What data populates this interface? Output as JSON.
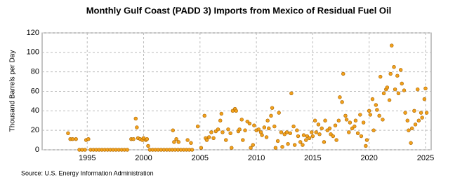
{
  "chart_data": {
    "type": "scatter",
    "title": "Monthly Gulf Coast (PADD 3) Imports from Mexico of Residual Fuel Oil",
    "y_label": "Thousand Barrels per Day",
    "source": "Source: U.S. Energy Information Administration",
    "color": "#f2a11c",
    "edge_color": "#a86400",
    "grid": true,
    "xlim": [
      1991,
      2025.5
    ],
    "ylim": [
      0,
      120
    ],
    "xticks": [
      1995,
      2000,
      2005,
      2010,
      2015,
      2020,
      2025
    ],
    "yticks": [
      0,
      20,
      40,
      60,
      80,
      100,
      120
    ],
    "x": [
      1993.3,
      1993.5,
      1993.7,
      1994.0,
      1994.9,
      1995.1,
      1994.3,
      1994.55,
      1994.8,
      1995.3,
      1995.55,
      1995.8,
      1996.05,
      1996.3,
      1996.55,
      1996.8,
      1997.05,
      1997.3,
      1997.55,
      1997.8,
      1998.05,
      1998.3,
      1998.55,
      1998.9,
      1999.1,
      1999.3,
      1999.4,
      1999.5,
      1999.7,
      1999.9,
      2000.0,
      2000.2,
      2000.3,
      2000.4,
      2000.55,
      2000.8,
      2001.05,
      2001.3,
      2001.55,
      2001.8,
      2002.05,
      2002.3,
      2002.55,
      2002.8,
      2003.05,
      2003.3,
      2003.55,
      2003.8,
      2004.05,
      2004.3,
      2002.6,
      2002.7,
      2002.9,
      2003.1,
      2003.9,
      2004.2,
      2004.8,
      2005.1,
      2005.4,
      2005.5,
      2005.6,
      2005.8,
      2006.0,
      2006.2,
      2006.4,
      2006.6,
      2006.8,
      2006.9,
      2007.0,
      2007.3,
      2007.5,
      2007.7,
      2007.8,
      2007.9,
      2008.1,
      2008.2,
      2008.4,
      2008.5,
      2008.7,
      2008.8,
      2009.0,
      2009.2,
      2009.4,
      2009.5,
      2009.7,
      2009.8,
      2010.0,
      2010.2,
      2010.4,
      2010.5,
      2010.7,
      2010.9,
      2011.0,
      2011.1,
      2011.3,
      2011.4,
      2011.6,
      2011.7,
      2011.9,
      2012.0,
      2012.2,
      2012.3,
      2012.5,
      2012.7,
      2012.8,
      2013.0,
      2013.1,
      2013.3,
      2013.4,
      2013.6,
      2013.7,
      2013.9,
      2014.1,
      2014.2,
      2014.4,
      2014.5,
      2014.7,
      2014.9,
      2015.0,
      2015.2,
      2015.3,
      2015.5,
      2015.6,
      2015.8,
      2016.0,
      2016.1,
      2016.3,
      2016.5,
      2016.6,
      2016.8,
      2017.0,
      2017.1,
      2017.3,
      2017.4,
      2017.6,
      2017.7,
      2017.9,
      2018.0,
      2018.2,
      2018.3,
      2018.5,
      2018.7,
      2018.8,
      2019.0,
      2019.2,
      2019.3,
      2019.5,
      2019.7,
      2019.8,
      2020.0,
      2020.1,
      2020.3,
      2020.4,
      2020.6,
      2020.7,
      2020.9,
      2021.0,
      2021.2,
      2021.3,
      2021.5,
      2021.6,
      2021.8,
      2021.9,
      2022.0,
      2022.2,
      2022.3,
      2022.5,
      2022.6,
      2022.8,
      2022.9,
      2023.1,
      2023.2,
      2023.4,
      2023.5,
      2023.7,
      2023.8,
      2024.0,
      2024.1,
      2024.3,
      2024.4,
      2024.6,
      2024.7,
      2024.9,
      2025.0,
      2025.1
    ],
    "values": [
      17,
      11,
      11,
      11,
      10,
      11,
      0,
      0,
      0,
      0,
      0,
      0,
      0,
      0,
      0,
      0,
      0,
      0,
      0,
      0,
      0,
      0,
      0,
      11,
      11,
      32,
      23,
      12,
      11,
      10,
      12,
      10,
      11,
      4,
      0,
      0,
      0,
      0,
      0,
      0,
      0,
      0,
      0,
      0,
      0,
      0,
      0,
      0,
      0,
      0,
      20,
      8,
      11,
      8,
      10,
      7,
      24,
      2,
      35,
      12,
      10,
      13,
      18,
      12,
      19,
      21,
      30,
      37,
      18,
      10,
      21,
      17,
      2,
      40,
      42,
      40,
      19,
      21,
      31,
      10,
      20,
      29,
      27,
      2,
      5,
      25,
      20,
      21,
      18,
      15,
      23,
      13,
      30,
      22,
      35,
      43,
      24,
      2,
      9,
      38,
      18,
      3,
      16,
      18,
      6,
      17,
      58,
      24,
      5,
      20,
      14,
      8,
      5,
      15,
      10,
      14,
      12,
      18,
      14,
      30,
      18,
      26,
      16,
      22,
      8,
      30,
      20,
      22,
      16,
      14,
      25,
      10,
      30,
      54,
      49,
      78,
      35,
      31,
      18,
      28,
      22,
      24,
      30,
      17,
      36,
      14,
      28,
      4,
      10,
      40,
      36,
      52,
      20,
      46,
      41,
      35,
      75,
      31,
      58,
      62,
      64,
      51,
      78,
      107,
      85,
      62,
      76,
      58,
      82,
      68,
      61,
      38,
      30,
      20,
      7,
      22,
      40,
      26,
      62,
      30,
      38,
      33,
      52,
      63,
      38
    ]
  }
}
